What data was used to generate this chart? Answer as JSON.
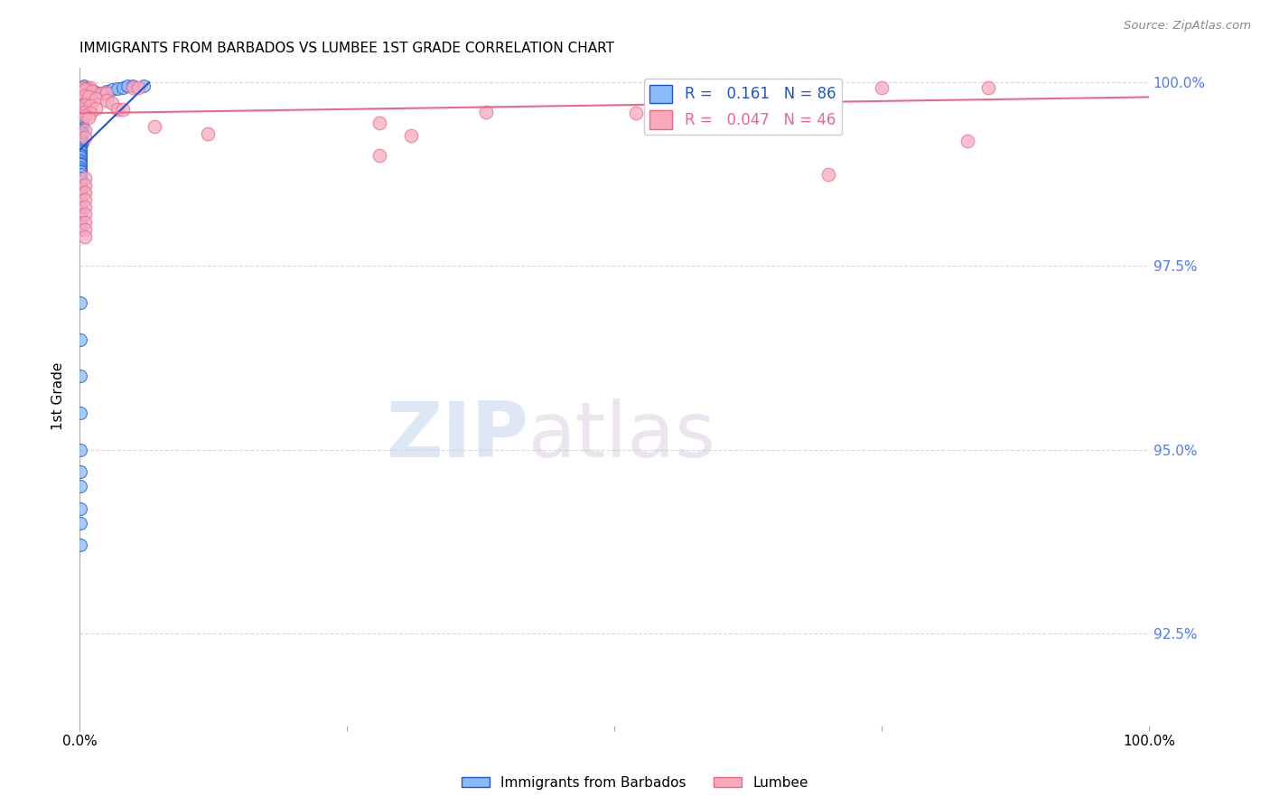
{
  "title": "IMMIGRANTS FROM BARBADOS VS LUMBEE 1ST GRADE CORRELATION CHART",
  "source_text": "Source: ZipAtlas.com",
  "ylabel": "1st Grade",
  "xlim": [
    0.0,
    1.0
  ],
  "ylim": [
    0.9125,
    1.002
  ],
  "xtick_positions": [
    0.0,
    0.25,
    0.5,
    0.75,
    1.0
  ],
  "xtick_labels": [
    "0.0%",
    "",
    "",
    "",
    "100.0%"
  ],
  "ytick_labels": [
    "92.5%",
    "95.0%",
    "97.5%",
    "100.0%"
  ],
  "ytick_values": [
    0.925,
    0.95,
    0.975,
    1.0
  ],
  "ytick_color": "#4d79ff",
  "blue_color": "#88bbf8",
  "pink_color": "#f8aabb",
  "trendline_blue": "#2255cc",
  "trendline_pink": "#ee6688",
  "watermark_zip": "ZIP",
  "watermark_atlas": "atlas",
  "grid_color": "#d8d8d8",
  "blue_scatter": [
    [
      0.002,
      0.9993
    ],
    [
      0.003,
      0.999
    ],
    [
      0.003,
      0.9988
    ],
    [
      0.004,
      0.9995
    ],
    [
      0.002,
      0.9985
    ],
    [
      0.001,
      0.9985
    ],
    [
      0.005,
      0.998
    ],
    [
      0.003,
      0.9978
    ],
    [
      0.002,
      0.9975
    ],
    [
      0.001,
      0.9975
    ],
    [
      0.004,
      0.9972
    ],
    [
      0.003,
      0.997
    ],
    [
      0.002,
      0.9968
    ],
    [
      0.001,
      0.9968
    ],
    [
      0.003,
      0.9965
    ],
    [
      0.002,
      0.9963
    ],
    [
      0.001,
      0.996
    ],
    [
      0.002,
      0.9958
    ],
    [
      0.003,
      0.9955
    ],
    [
      0.001,
      0.9955
    ],
    [
      0.001,
      0.9952
    ],
    [
      0.002,
      0.995
    ],
    [
      0.001,
      0.9948
    ],
    [
      0.002,
      0.9945
    ],
    [
      0.001,
      0.9943
    ],
    [
      0.001,
      0.994
    ],
    [
      0.002,
      0.9938
    ],
    [
      0.001,
      0.9935
    ],
    [
      0.001,
      0.9933
    ],
    [
      0.002,
      0.993
    ],
    [
      0.001,
      0.9928
    ],
    [
      0.001,
      0.9925
    ],
    [
      0.001,
      0.9922
    ],
    [
      0.001,
      0.992
    ],
    [
      0.002,
      0.9918
    ],
    [
      0.001,
      0.9915
    ],
    [
      0.001,
      0.9912
    ],
    [
      0.001,
      0.991
    ],
    [
      0.001,
      0.9908
    ],
    [
      0.001,
      0.9905
    ],
    [
      0.001,
      0.9902
    ],
    [
      0.001,
      0.99
    ],
    [
      0.001,
      0.9898
    ],
    [
      0.001,
      0.9895
    ],
    [
      0.001,
      0.9892
    ],
    [
      0.001,
      0.989
    ],
    [
      0.001,
      0.9888
    ],
    [
      0.001,
      0.9885
    ],
    [
      0.001,
      0.9882
    ],
    [
      0.001,
      0.988
    ],
    [
      0.001,
      0.9878
    ],
    [
      0.001,
      0.9875
    ],
    [
      0.001,
      0.987
    ],
    [
      0.001,
      0.9865
    ],
    [
      0.001,
      0.986
    ],
    [
      0.001,
      0.9855
    ],
    [
      0.001,
      0.985
    ],
    [
      0.001,
      0.984
    ],
    [
      0.001,
      0.983
    ],
    [
      0.001,
      0.982
    ],
    [
      0.001,
      0.981
    ],
    [
      0.001,
      0.98
    ],
    [
      0.006,
      0.9993
    ],
    [
      0.007,
      0.9992
    ],
    [
      0.008,
      0.999
    ],
    [
      0.01,
      0.999
    ],
    [
      0.012,
      0.9988
    ],
    [
      0.015,
      0.9987
    ],
    [
      0.018,
      0.9985
    ],
    [
      0.02,
      0.9985
    ],
    [
      0.022,
      0.9985
    ],
    [
      0.025,
      0.9988
    ],
    [
      0.03,
      0.999
    ],
    [
      0.035,
      0.9992
    ],
    [
      0.04,
      0.9993
    ],
    [
      0.045,
      0.9995
    ],
    [
      0.05,
      0.9995
    ],
    [
      0.06,
      0.9995
    ],
    [
      0.001,
      0.97
    ],
    [
      0.001,
      0.965
    ],
    [
      0.001,
      0.96
    ],
    [
      0.001,
      0.955
    ],
    [
      0.001,
      0.95
    ],
    [
      0.001,
      0.947
    ],
    [
      0.001,
      0.945
    ],
    [
      0.001,
      0.942
    ],
    [
      0.001,
      0.94
    ],
    [
      0.001,
      0.937
    ]
  ],
  "pink_scatter": [
    [
      0.003,
      0.9993
    ],
    [
      0.01,
      0.9993
    ],
    [
      0.05,
      0.9993
    ],
    [
      0.055,
      0.9993
    ],
    [
      0.6,
      0.9993
    ],
    [
      0.75,
      0.9993
    ],
    [
      0.85,
      0.9993
    ],
    [
      0.005,
      0.999
    ],
    [
      0.012,
      0.9988
    ],
    [
      0.02,
      0.9985
    ],
    [
      0.025,
      0.9985
    ],
    [
      0.005,
      0.9982
    ],
    [
      0.008,
      0.998
    ],
    [
      0.015,
      0.9978
    ],
    [
      0.025,
      0.9975
    ],
    [
      0.03,
      0.9972
    ],
    [
      0.005,
      0.997
    ],
    [
      0.01,
      0.9968
    ],
    [
      0.015,
      0.9965
    ],
    [
      0.035,
      0.9963
    ],
    [
      0.04,
      0.9963
    ],
    [
      0.005,
      0.996
    ],
    [
      0.01,
      0.9958
    ],
    [
      0.38,
      0.996
    ],
    [
      0.52,
      0.9958
    ],
    [
      0.005,
      0.9955
    ],
    [
      0.008,
      0.9952
    ],
    [
      0.28,
      0.9945
    ],
    [
      0.07,
      0.994
    ],
    [
      0.005,
      0.9935
    ],
    [
      0.12,
      0.993
    ],
    [
      0.31,
      0.9928
    ],
    [
      0.005,
      0.9925
    ],
    [
      0.83,
      0.992
    ],
    [
      0.28,
      0.99
    ],
    [
      0.7,
      0.9875
    ],
    [
      0.005,
      0.987
    ],
    [
      0.005,
      0.986
    ],
    [
      0.005,
      0.985
    ],
    [
      0.005,
      0.984
    ],
    [
      0.005,
      0.983
    ],
    [
      0.005,
      0.982
    ],
    [
      0.005,
      0.981
    ],
    [
      0.005,
      0.98
    ],
    [
      0.005,
      0.979
    ]
  ],
  "blue_trend_x": [
    0.0,
    0.065
  ],
  "blue_trend_y": [
    0.9908,
    1.0
  ],
  "pink_trend_x": [
    0.0,
    1.0
  ],
  "pink_trend_y": [
    0.9958,
    0.998
  ]
}
